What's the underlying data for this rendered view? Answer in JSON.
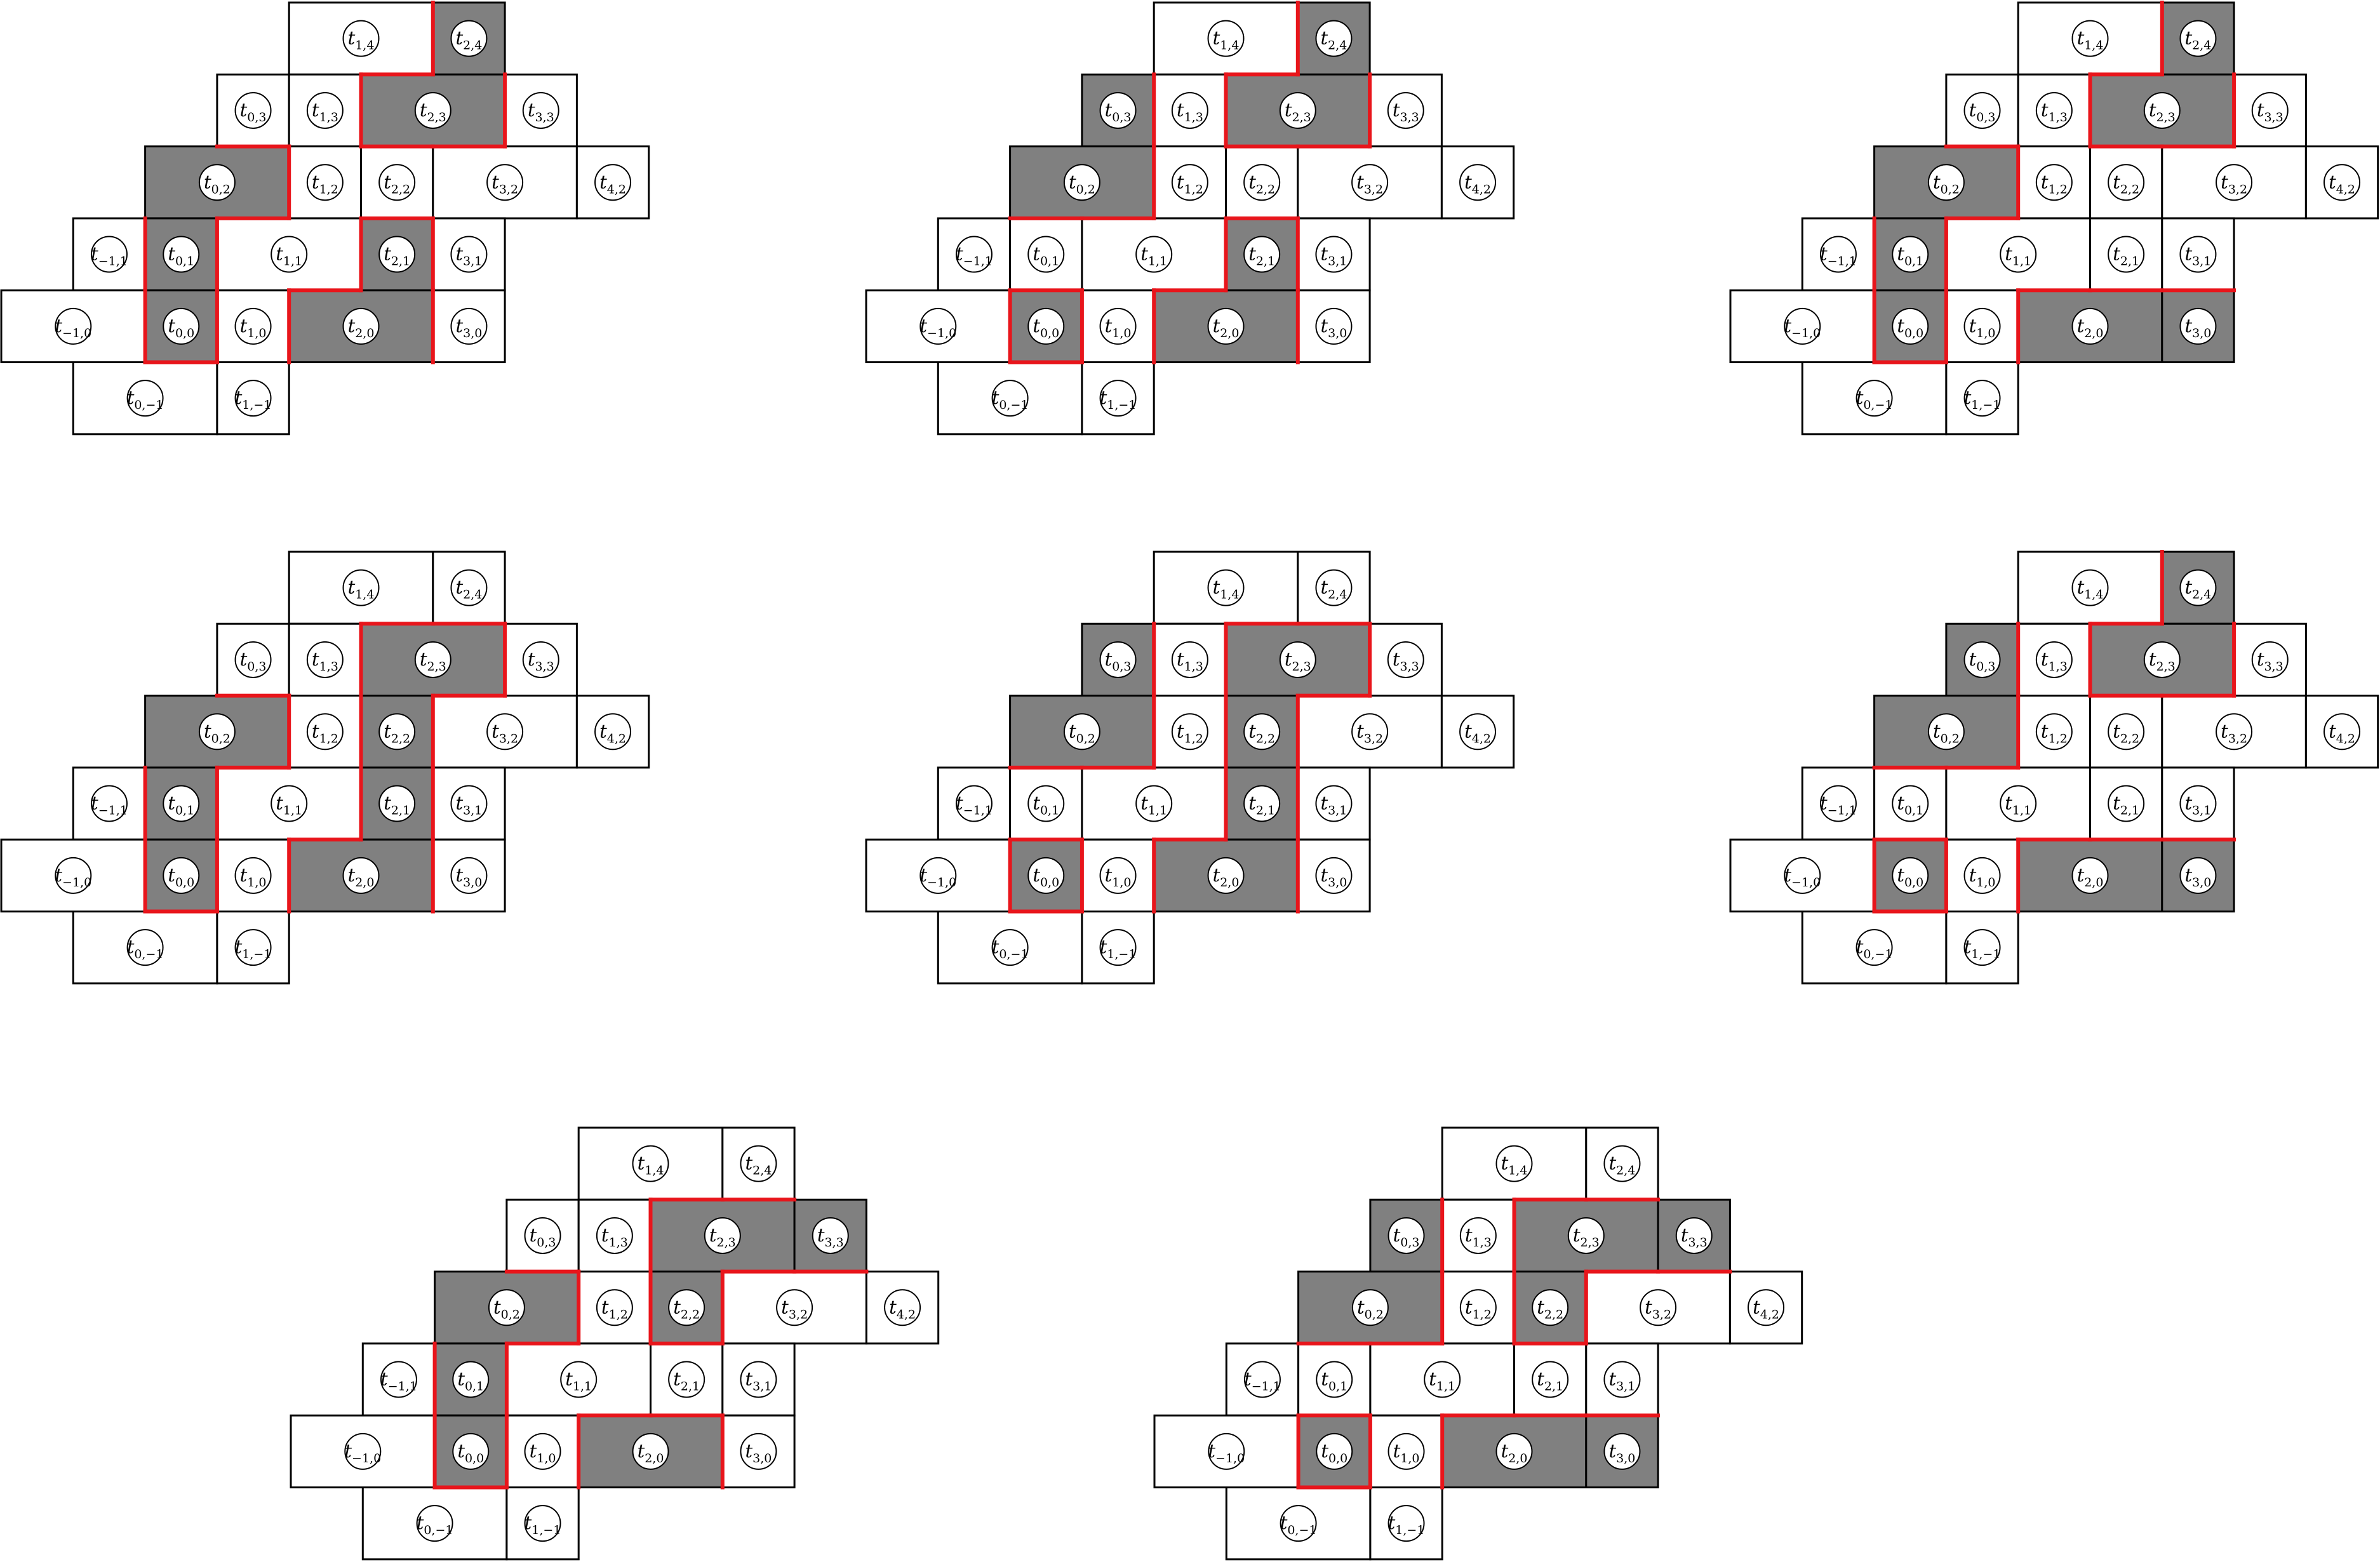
{
  "figure": {
    "panel_count": 8,
    "colors": {
      "shaded_fill": "#808080",
      "red_edge": "#e8151b",
      "outline": "#000000",
      "background": "#ffffff"
    },
    "tiles": [
      {
        "id": "t_1_4",
        "base": "t",
        "sub": "1,4"
      },
      {
        "id": "t_2_4",
        "base": "t",
        "sub": "2,4"
      },
      {
        "id": "t_0_3",
        "base": "t",
        "sub": "0,3"
      },
      {
        "id": "t_1_3",
        "base": "t",
        "sub": "1,3"
      },
      {
        "id": "t_2_3",
        "base": "t",
        "sub": "2,3"
      },
      {
        "id": "t_3_3",
        "base": "t",
        "sub": "3,3"
      },
      {
        "id": "t_0_2",
        "base": "t",
        "sub": "0,2"
      },
      {
        "id": "t_1_2",
        "base": "t",
        "sub": "1,2"
      },
      {
        "id": "t_2_2",
        "base": "t",
        "sub": "2,2"
      },
      {
        "id": "t_3_2",
        "base": "t",
        "sub": "3,2"
      },
      {
        "id": "t_4_2",
        "base": "t",
        "sub": "4,2"
      },
      {
        "id": "t_m1_1",
        "base": "t",
        "sub": "−1,1"
      },
      {
        "id": "t_0_1",
        "base": "t",
        "sub": "0,1"
      },
      {
        "id": "t_1_1",
        "base": "t",
        "sub": "1,1"
      },
      {
        "id": "t_2_1",
        "base": "t",
        "sub": "2,1"
      },
      {
        "id": "t_3_1",
        "base": "t",
        "sub": "3,1"
      },
      {
        "id": "t_m1_0",
        "base": "t",
        "sub": "−1,0"
      },
      {
        "id": "t_0_0",
        "base": "t",
        "sub": "0,0"
      },
      {
        "id": "t_1_0",
        "base": "t",
        "sub": "1,0"
      },
      {
        "id": "t_2_0",
        "base": "t",
        "sub": "2,0"
      },
      {
        "id": "t_3_0",
        "base": "t",
        "sub": "3,0"
      },
      {
        "id": "t_0_m1",
        "base": "t",
        "sub": "0,−1"
      },
      {
        "id": "t_1_m1",
        "base": "t",
        "sub": "1,−1"
      }
    ],
    "panels": [
      {
        "shaded": [
          "t_2_4",
          "t_2_3",
          "t_0_2",
          "t_0_1",
          "t_2_1",
          "t_0_0",
          "t_2_0"
        ]
      },
      {
        "shaded": [
          "t_2_4",
          "t_0_3",
          "t_2_3",
          "t_0_2",
          "t_2_1",
          "t_0_0",
          "t_2_0"
        ]
      },
      {
        "shaded": [
          "t_2_4",
          "t_2_3",
          "t_0_2",
          "t_0_1",
          "t_0_0",
          "t_2_0",
          "t_3_0"
        ]
      },
      {
        "shaded": [
          "t_2_3",
          "t_0_2",
          "t_2_2",
          "t_0_1",
          "t_2_1",
          "t_0_0",
          "t_2_0"
        ]
      },
      {
        "shaded": [
          "t_0_3",
          "t_2_3",
          "t_0_2",
          "t_2_2",
          "t_2_1",
          "t_0_0",
          "t_2_0"
        ]
      },
      {
        "shaded": [
          "t_2_4",
          "t_0_3",
          "t_2_3",
          "t_0_2",
          "t_0_0",
          "t_2_0",
          "t_3_0"
        ]
      },
      {
        "shaded": [
          "t_2_3",
          "t_3_3",
          "t_0_2",
          "t_2_2",
          "t_0_1",
          "t_0_0",
          "t_2_0"
        ]
      },
      {
        "shaded": [
          "t_0_3",
          "t_2_3",
          "t_3_3",
          "t_0_2",
          "t_2_2",
          "t_0_0",
          "t_2_0",
          "t_3_0"
        ]
      }
    ]
  }
}
